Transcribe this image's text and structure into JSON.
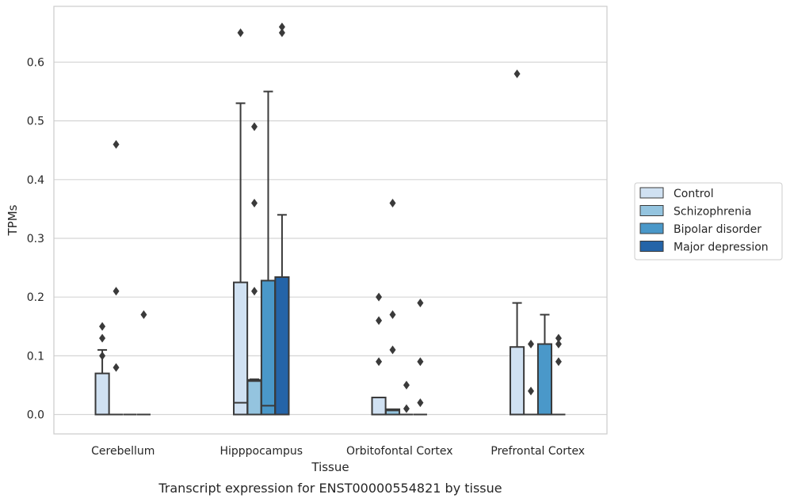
{
  "chart_data": {
    "type": "box",
    "xlabel": "Tissue",
    "ylabel": "TPMs",
    "caption": "Transcript expression for ENST00000554821 by tissue",
    "ylim": [
      -0.033,
      0.695
    ],
    "yticks": [
      0.0,
      0.1,
      0.2,
      0.3,
      0.4,
      0.5,
      0.6
    ],
    "ytick_labels": [
      "0.0",
      "0.1",
      "0.2",
      "0.3",
      "0.4",
      "0.5",
      "0.6"
    ],
    "grid": "horizontal",
    "legend_position": "right",
    "categories": [
      "Cerebellum",
      "Hipppocampus",
      "Orbitofontal Cortex",
      "Prefrontal Cortex"
    ],
    "series": [
      {
        "name": "Control",
        "color": "#d0e1f2",
        "boxes": [
          {
            "q1": 0.0,
            "median": 0.0,
            "q3": 0.07,
            "whisker_low": 0.0,
            "whisker_high": 0.11,
            "outliers": [
              0.15,
              0.13,
              0.1
            ]
          },
          {
            "q1": 0.0,
            "median": 0.02,
            "q3": 0.225,
            "whisker_low": 0.0,
            "whisker_high": 0.53,
            "outliers": [
              0.65
            ]
          },
          {
            "q1": 0.0,
            "median": 0.0,
            "q3": 0.029,
            "whisker_low": 0.0,
            "whisker_high": 0.029,
            "outliers": [
              0.2,
              0.16,
              0.09
            ]
          },
          {
            "q1": 0.0,
            "median": 0.0,
            "q3": 0.115,
            "whisker_low": 0.0,
            "whisker_high": 0.19,
            "outliers": [
              0.58
            ]
          }
        ]
      },
      {
        "name": "Schizophrenia",
        "color": "#94c4df",
        "boxes": [
          {
            "q1": 0.0,
            "median": 0.0,
            "q3": 0.0,
            "whisker_low": 0.0,
            "whisker_high": 0.0,
            "outliers": [
              0.46,
              0.21,
              0.08
            ]
          },
          {
            "q1": 0.0,
            "median": 0.057,
            "q3": 0.059,
            "whisker_low": 0.0,
            "whisker_high": 0.06,
            "outliers": [
              0.49,
              0.36,
              0.21
            ]
          },
          {
            "q1": 0.0,
            "median": 0.007,
            "q3": 0.009,
            "whisker_low": 0.0,
            "whisker_high": 0.009,
            "outliers": [
              0.36,
              0.17,
              0.11
            ]
          },
          {
            "q1": 0.0,
            "median": 0.0,
            "q3": 0.0,
            "whisker_low": 0.0,
            "whisker_high": 0.0,
            "outliers": [
              0.12,
              0.04
            ]
          }
        ]
      },
      {
        "name": "Bipolar disorder",
        "color": "#4a98c9",
        "boxes": [
          {
            "q1": 0.0,
            "median": 0.0,
            "q3": 0.0,
            "whisker_low": 0.0,
            "whisker_high": 0.0,
            "outliers": []
          },
          {
            "q1": 0.0,
            "median": 0.015,
            "q3": 0.228,
            "whisker_low": 0.0,
            "whisker_high": 0.55,
            "outliers": []
          },
          {
            "q1": 0.0,
            "median": 0.0,
            "q3": 0.0,
            "whisker_low": 0.0,
            "whisker_high": 0.0,
            "outliers": [
              0.05,
              0.01
            ]
          },
          {
            "q1": 0.0,
            "median": 0.0,
            "q3": 0.12,
            "whisker_low": 0.0,
            "whisker_high": 0.17,
            "outliers": []
          }
        ]
      },
      {
        "name": "Major depression",
        "color": "#2464a8",
        "boxes": [
          {
            "q1": 0.0,
            "median": 0.0,
            "q3": 0.0,
            "whisker_low": 0.0,
            "whisker_high": 0.0,
            "outliers": [
              0.17
            ]
          },
          {
            "q1": 0.0,
            "median": 0.0,
            "q3": 0.234,
            "whisker_low": 0.0,
            "whisker_high": 0.34,
            "outliers": [
              0.66,
              0.65
            ]
          },
          {
            "q1": 0.0,
            "median": 0.0,
            "q3": 0.0,
            "whisker_low": 0.0,
            "whisker_high": 0.0,
            "outliers": [
              0.19,
              0.09,
              0.02
            ]
          },
          {
            "q1": 0.0,
            "median": 0.0,
            "q3": 0.0,
            "whisker_low": 0.0,
            "whisker_high": 0.0,
            "outliers": [
              0.13,
              0.12,
              0.09
            ]
          }
        ]
      }
    ]
  }
}
